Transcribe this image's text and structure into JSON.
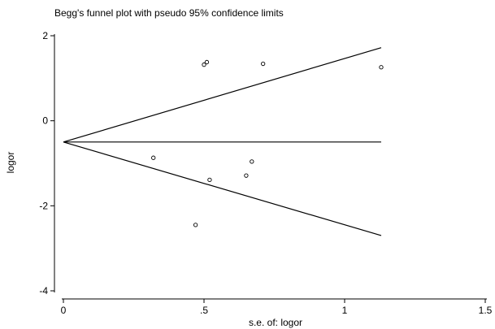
{
  "chart_data": {
    "type": "scatter",
    "title": "Begg's funnel plot with pseudo 95% confidence limits",
    "xlabel": "s.e. of: logor",
    "ylabel": "logor",
    "xlim": [
      0,
      1.5
    ],
    "ylim": [
      -4,
      2
    ],
    "x_ticks": [
      0,
      0.5,
      1,
      1.5
    ],
    "x_tick_labels": [
      "0",
      ".5",
      "1",
      "1.5"
    ],
    "y_ticks": [
      -4,
      -2,
      0,
      2
    ],
    "y_tick_labels": [
      "-4",
      "-2",
      "0",
      "2"
    ],
    "grid": false,
    "legend": "none",
    "pooled_estimate": -0.5,
    "funnel": {
      "apex": [
        0,
        -0.5
      ],
      "end_se": 1.13,
      "upper_end": 1.72,
      "center_end": -0.5,
      "lower_end": -2.7
    },
    "points": [
      {
        "x": 0.32,
        "y": -0.87
      },
      {
        "x": 0.47,
        "y": -2.45
      },
      {
        "x": 0.5,
        "y": 1.32
      },
      {
        "x": 0.51,
        "y": 1.38
      },
      {
        "x": 0.52,
        "y": -1.39
      },
      {
        "x": 0.65,
        "y": -1.29
      },
      {
        "x": 0.67,
        "y": -0.96
      },
      {
        "x": 0.71,
        "y": 1.34
      },
      {
        "x": 1.13,
        "y": 1.26
      }
    ]
  }
}
